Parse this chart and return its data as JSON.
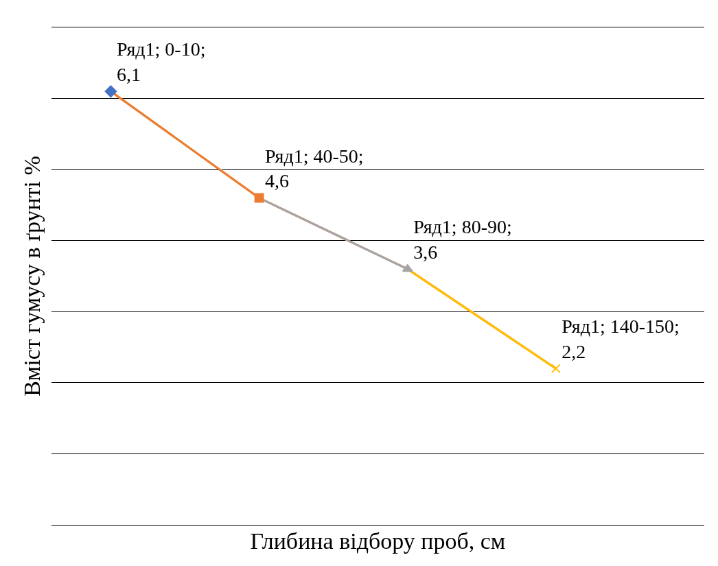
{
  "chart_data": {
    "type": "line",
    "xlabel": "Глибина відбору проб, см",
    "ylabel": "Вміст гумусу в ґрунті %",
    "categories": [
      null,
      null,
      null,
      null
    ],
    "series": [
      {
        "color": "#ed7d31",
        "colors": [
          "#4472c4",
          "#ed7d31",
          "#a5a5a5",
          "#ffc000"
        ],
        "values": [
          6.1,
          4.6,
          3.6,
          2.2
        ],
        "value_labels": [
          "Ряд1; 0-10; 6,1",
          "Ряд1; 40-50; 4,6",
          "Ряд1; 80-90; 3,6",
          "Ряд1; 140-150; 2,2"
        ]
      }
    ],
    "marker": [
      "diamond",
      "square",
      "triangle",
      "cross"
    ],
    "ylim": [
      0,
      7
    ],
    "yticks": [
      {
        "value": 0,
        "label": null
      },
      {
        "value": 1,
        "label": null
      },
      {
        "value": 2,
        "label": null
      },
      {
        "value": 3,
        "label": null
      },
      {
        "value": 4,
        "label": null
      },
      {
        "value": 5,
        "label": null
      },
      {
        "value": 6,
        "label": null
      },
      {
        "value": 7,
        "label": null
      }
    ],
    "grid": "y"
  }
}
